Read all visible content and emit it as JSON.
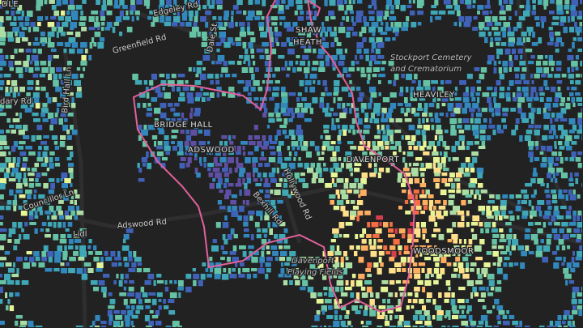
{
  "labels": [
    "DLE",
    "Edgeley Rd",
    "Greenfield Rd",
    "Dale St",
    "Bird Hall Ln",
    "dary Rd",
    "BRIDGE HALL",
    "ADSWOOD",
    "Councillor Ln",
    "Lidl",
    "Adswood Rd",
    "Bexhill Rd",
    "Hollywood Rd",
    "Stockport Cemetery",
    "and Crematorium",
    "HEAVILEY",
    "SHAW",
    "HEATH",
    "DAVENPORT",
    "Davenport",
    "Playing Fields",
    "WOODSMOOR"
  ]
}
